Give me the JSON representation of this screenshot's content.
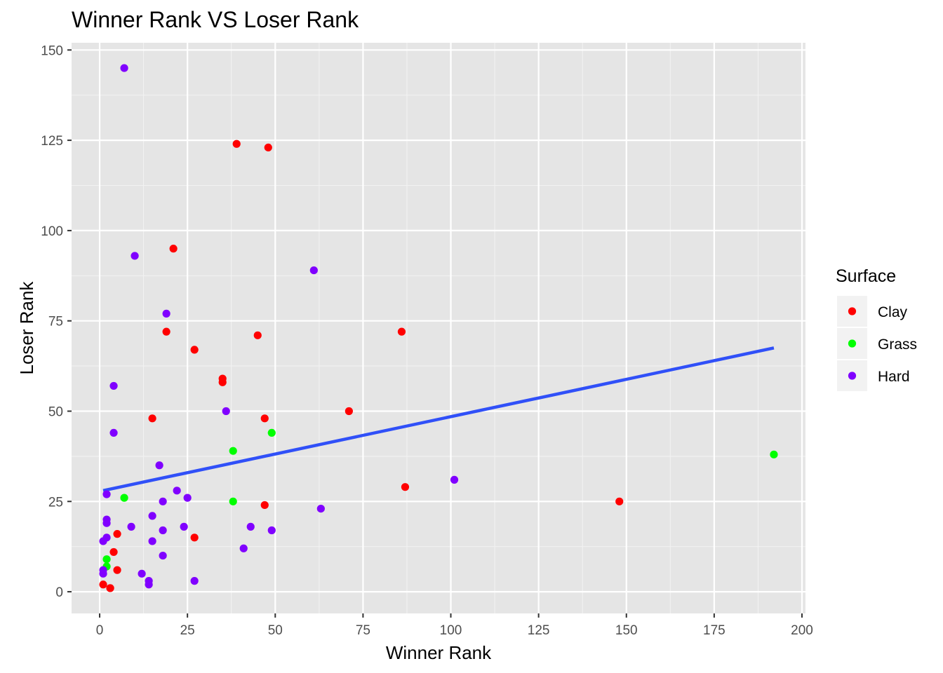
{
  "chart_data": {
    "type": "scatter",
    "title": "Winner Rank VS Loser Rank",
    "xlabel": "Winner Rank",
    "ylabel": "Loser Rank",
    "xlim": [
      -8,
      201
    ],
    "ylim": [
      -6,
      152
    ],
    "x_ticks": [
      0,
      25,
      50,
      75,
      100,
      125,
      150,
      175,
      200
    ],
    "y_ticks": [
      0,
      25,
      50,
      75,
      100,
      125,
      150
    ],
    "x_tick_labels": [
      "0",
      "25",
      "50",
      "75",
      "100",
      "125",
      "150",
      "175",
      "200"
    ],
    "y_tick_labels": [
      "0",
      "25",
      "50",
      "75",
      "100",
      "125",
      "150"
    ],
    "grid": true,
    "background": "#e5e5e5",
    "legend": {
      "title": "Surface",
      "position": "right",
      "entries": [
        {
          "label": "Clay",
          "color": "#ff0000"
        },
        {
          "label": "Grass",
          "color": "#00ff00"
        },
        {
          "label": "Hard",
          "color": "#8000ff"
        }
      ]
    },
    "series": [
      {
        "name": "Clay",
        "color": "#ff0000",
        "points": [
          [
            39,
            124
          ],
          [
            48,
            123
          ],
          [
            21,
            95
          ],
          [
            19,
            72
          ],
          [
            45,
            71
          ],
          [
            86,
            72
          ],
          [
            27,
            67
          ],
          [
            35,
            59
          ],
          [
            35,
            58
          ],
          [
            15,
            48
          ],
          [
            47,
            48
          ],
          [
            71,
            50
          ],
          [
            87,
            29
          ],
          [
            148,
            25
          ],
          [
            47,
            24
          ],
          [
            5,
            16
          ],
          [
            27,
            15
          ],
          [
            4,
            11
          ],
          [
            5,
            6
          ],
          [
            1,
            2
          ],
          [
            3,
            1
          ],
          [
            3,
            1
          ]
        ]
      },
      {
        "name": "Grass",
        "color": "#00ff00",
        "points": [
          [
            49,
            44
          ],
          [
            38,
            39
          ],
          [
            192,
            38
          ],
          [
            7,
            26
          ],
          [
            38,
            25
          ],
          [
            2,
            9
          ],
          [
            2,
            7
          ]
        ]
      },
      {
        "name": "Hard",
        "color": "#8000ff",
        "points": [
          [
            7,
            145
          ],
          [
            10,
            93
          ],
          [
            61,
            89
          ],
          [
            19,
            77
          ],
          [
            4,
            57
          ],
          [
            36,
            50
          ],
          [
            4,
            44
          ],
          [
            17,
            35
          ],
          [
            101,
            31
          ],
          [
            22,
            28
          ],
          [
            2,
            27
          ],
          [
            25,
            26
          ],
          [
            18,
            25
          ],
          [
            63,
            23
          ],
          [
            15,
            21
          ],
          [
            2,
            20
          ],
          [
            2,
            19
          ],
          [
            9,
            18
          ],
          [
            24,
            18
          ],
          [
            43,
            18
          ],
          [
            18,
            17
          ],
          [
            49,
            17
          ],
          [
            2,
            15
          ],
          [
            15,
            14
          ],
          [
            1,
            14
          ],
          [
            41,
            12
          ],
          [
            18,
            10
          ],
          [
            1,
            6
          ],
          [
            1,
            5
          ],
          [
            12,
            5
          ],
          [
            14,
            3
          ],
          [
            27,
            3
          ],
          [
            14,
            2
          ]
        ]
      }
    ],
    "trend_line": {
      "color": "#3050f8",
      "x": [
        1,
        192
      ],
      "y": [
        28,
        67.5
      ]
    }
  }
}
